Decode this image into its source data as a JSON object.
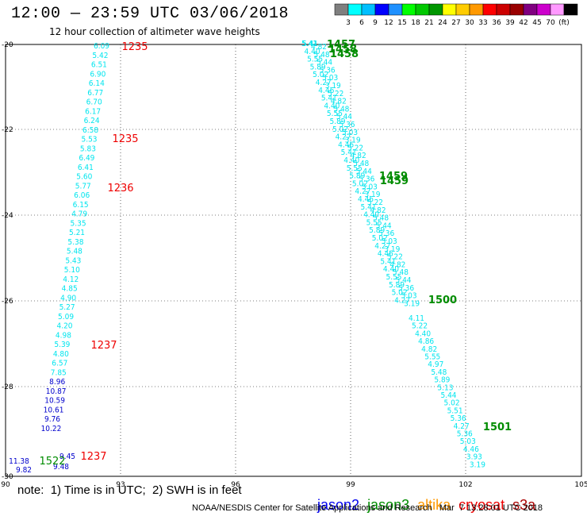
{
  "header": {
    "title": "12:00 — 23:59 UTC 03/06/2018",
    "subtitle": "12 hour collection of altimeter wave heights"
  },
  "colorbar": {
    "swatches": [
      "#7f7f7f",
      "#00ffff",
      "#00bfff",
      "#0000ff",
      "#1e90ff",
      "#00ff00",
      "#00c800",
      "#009600",
      "#ffff00",
      "#ffcc00",
      "#ff9900",
      "#ff0000",
      "#cc0000",
      "#990000",
      "#800080",
      "#cc00cc",
      "#ff99ff",
      "#000000"
    ],
    "labels": [
      "3",
      "6",
      "9",
      "12",
      "15",
      "18",
      "21",
      "24",
      "27",
      "30",
      "33",
      "36",
      "39",
      "42",
      "45",
      "70",
      "(ft)"
    ]
  },
  "axes": {
    "x_ticks": [
      "90",
      "93",
      "96",
      "99",
      "102",
      "105"
    ],
    "y_ticks": [
      "-20",
      "-22",
      "-24",
      "-26",
      "-28",
      "-30"
    ]
  },
  "track_left": {
    "color": "#00e5ee",
    "values": [
      "6.09",
      "5.42",
      "6.51",
      "6.90",
      "6.14",
      "6.77",
      "6.70",
      "6.17",
      "6.24",
      "6.58",
      "5.53",
      "5.83",
      "6.49",
      "6.41",
      "5.60",
      "5.77",
      "6.06",
      "6.15",
      "4.79",
      "5.35",
      "5.21",
      "5.38",
      "5.48",
      "5.43",
      "5.10",
      "4.12",
      "4.85",
      "4.90",
      "5.27",
      "5.09",
      "4.20",
      "4.98",
      "5.39",
      "4.80",
      "6.57",
      "7.85",
      "8.96",
      "10.87",
      "10.59",
      "10.61",
      "9.76",
      "10.22",
      "9.45",
      "9.48",
      "9.82",
      "11.38"
    ]
  },
  "track_left_labels": {
    "red": [
      "1235",
      "1235",
      "1236",
      "1237",
      "1237"
    ],
    "green": [
      "1522"
    ]
  },
  "track_right": {
    "values": [
      "5.41",
      "4.11",
      "5.22",
      "4.40",
      "4.86",
      "4.82",
      "5.55",
      "4.97",
      "5.48",
      "5.89",
      "5.13",
      "5.44",
      "5.02",
      "5.51",
      "5.36",
      "4.27",
      "5.36",
      "5.03",
      "4.46",
      "3.93",
      "3.19"
    ],
    "green": [
      "1457",
      "1458",
      "1458",
      "1459",
      "1459",
      "1500",
      "1501"
    ]
  },
  "footer": {
    "note": "note:  1) Time is in UTC;  2) SWH is in feet",
    "satellites": [
      {
        "name": "jason2",
        "color": "#0000ee"
      },
      {
        "name": "jason3",
        "color": "#008c00"
      },
      {
        "name": "altika",
        "color": "#ff9900"
      },
      {
        "name": "cryosat",
        "color": "#ee0000"
      },
      {
        "name": "s3a",
        "color": "#aa0000"
      }
    ],
    "credit": "NOAA/NESDIS Center for Satellite Applications and Research   Mar  7 13:28:01 UTC 2018"
  }
}
